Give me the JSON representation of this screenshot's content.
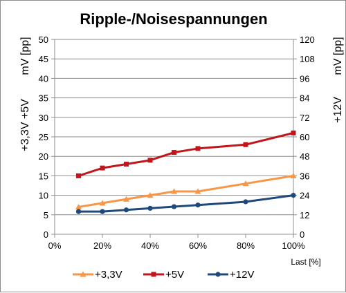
{
  "chart_data": {
    "type": "line",
    "title": "Ripple-/Noisespannungen",
    "xlabel": "Last [%]",
    "ylabel_left_line1": "+3,3V +5V",
    "ylabel_left_line2": "mV [pp]",
    "ylabel_right_line1": "+12V",
    "ylabel_right_line2": "mV [pp]",
    "xlim": [
      0,
      100
    ],
    "x_ticks": [
      "0%",
      "20%",
      "40%",
      "60%",
      "80%",
      "100%"
    ],
    "x_tick_values": [
      0,
      20,
      40,
      60,
      80,
      100
    ],
    "ylim_left": [
      0,
      50
    ],
    "y_ticks_left": [
      0,
      5,
      10,
      15,
      20,
      25,
      30,
      35,
      40,
      45,
      50
    ],
    "ylim_right": [
      0,
      120
    ],
    "y_ticks_right": [
      0,
      12,
      24,
      36,
      48,
      60,
      72,
      84,
      96,
      108,
      120
    ],
    "grid": "horizontal",
    "legend_position": "bottom",
    "x": [
      10,
      20,
      30,
      40,
      50,
      60,
      80,
      100
    ],
    "series": [
      {
        "name": "+3,3V",
        "axis": "left",
        "color": "#f79646",
        "marker": "triangle",
        "values": [
          7,
          8,
          9,
          10,
          11,
          11,
          13,
          15
        ]
      },
      {
        "name": "+5V",
        "axis": "left",
        "color": "#c0161c",
        "marker": "square",
        "values": [
          15,
          17,
          18,
          19,
          21,
          22,
          23,
          26
        ]
      },
      {
        "name": "+12V",
        "axis": "right",
        "color": "#1f497d",
        "marker": "circle",
        "values": [
          14,
          14,
          15,
          16,
          17,
          18,
          20,
          24
        ]
      }
    ]
  }
}
